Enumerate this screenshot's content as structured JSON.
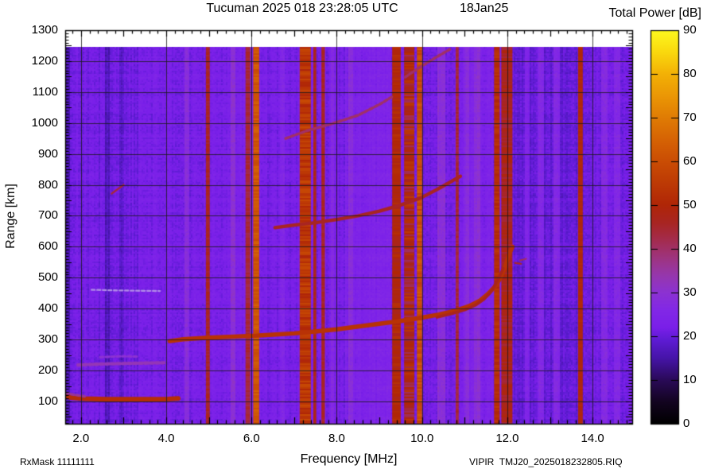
{
  "header": {
    "title": "Tucuman 2025 018 23:28:05 UTC",
    "date": "18Jan25"
  },
  "colorbar": {
    "title": "Total Power [dB]",
    "unit": "dB",
    "min": 0,
    "max": 90,
    "ticks": [
      0,
      10,
      20,
      30,
      40,
      50,
      60,
      70,
      80,
      90
    ]
  },
  "axes": {
    "x": {
      "label": "Frequency [MHz]",
      "ticks": [
        {
          "label": "2.0",
          "value": 2.0
        },
        {
          "label": "4.0",
          "value": 4.0
        },
        {
          "label": "6.0",
          "value": 6.0
        },
        {
          "label": "8.0",
          "value": 8.0
        },
        {
          "label": "10.0",
          "value": 10.0
        },
        {
          "label": "12.0",
          "value": 12.0
        },
        {
          "label": "14.0",
          "value": 14.0
        }
      ]
    },
    "y": {
      "label": "Range [km]",
      "ticks": [
        100,
        200,
        300,
        400,
        500,
        600,
        700,
        800,
        900,
        1000,
        1100,
        1200,
        1300
      ]
    }
  },
  "footer": {
    "left": "RxMask 11111111",
    "right": "VIPIR  TMJ20_2025018232805.RIQ"
  },
  "chart_data": {
    "type": "heatmap",
    "title": "Tucuman 2025 018 23:28:05 UTC",
    "subtitle": "18Jan25",
    "xlabel": "Frequency [MHz]",
    "ylabel": "Range [km]",
    "zlabel": "Total Power [dB]",
    "xlim": [
      1.63,
      14.93
    ],
    "ylim": [
      28,
      1300
    ],
    "zlim": [
      0,
      90
    ],
    "grid": "on",
    "x_grid_step_mhz": 2.0,
    "y_grid_step_km": 100,
    "background_db": 22,
    "data_top_km": 1246,
    "colormap_stops": [
      [
        0,
        "#000000"
      ],
      [
        5,
        "#130420"
      ],
      [
        10,
        "#2a0a58"
      ],
      [
        15,
        "#4614a8"
      ],
      [
        19,
        "#5d1bd2"
      ],
      [
        22,
        "#7a1fe9"
      ],
      [
        26,
        "#8228e6"
      ],
      [
        30,
        "#8c32d2"
      ],
      [
        34,
        "#9637ac"
      ],
      [
        38,
        "#9e347e"
      ],
      [
        42,
        "#a42c4e"
      ],
      [
        46,
        "#a82522"
      ],
      [
        50,
        "#b02607"
      ],
      [
        55,
        "#bd3a05"
      ],
      [
        60,
        "#ca4d04"
      ],
      [
        65,
        "#d66304"
      ],
      [
        70,
        "#e07c04"
      ],
      [
        75,
        "#eb9705"
      ],
      [
        80,
        "#f3b106"
      ],
      [
        85,
        "#fad90e"
      ],
      [
        90,
        "#fdf91f"
      ]
    ],
    "rfi_stripes": [
      [
        4.93,
        5.02,
        46,
        2
      ],
      [
        5.86,
        5.97,
        44,
        2
      ],
      [
        6.04,
        6.18,
        62,
        3
      ],
      [
        7.13,
        7.39,
        54,
        5
      ],
      [
        7.45,
        7.52,
        47,
        2
      ],
      [
        7.64,
        7.72,
        46,
        2
      ],
      [
        9.3,
        9.5,
        50,
        3
      ],
      [
        9.58,
        9.82,
        48,
        7
      ],
      [
        9.88,
        10.0,
        60,
        4
      ],
      [
        10.79,
        10.86,
        44,
        2
      ],
      [
        11.69,
        11.82,
        52,
        3
      ],
      [
        11.86,
        12.12,
        47,
        3
      ],
      [
        13.66,
        13.77,
        50,
        2
      ]
    ],
    "faint_stripes": [
      [
        4.48,
        0.07,
        6
      ],
      [
        5.58,
        0.06,
        6
      ],
      [
        6.72,
        0.05,
        4
      ],
      [
        7.9,
        0.05,
        4
      ],
      [
        8.33,
        0.06,
        5
      ],
      [
        10.45,
        0.08,
        7
      ],
      [
        11.05,
        0.05,
        5
      ],
      [
        11.28,
        0.07,
        6
      ],
      [
        12.48,
        0.06,
        5
      ],
      [
        12.79,
        0.08,
        6
      ],
      [
        13.17,
        0.07,
        6
      ],
      [
        14.28,
        0.09,
        6
      ],
      [
        14.58,
        0.07,
        6
      ],
      [
        2.62,
        0.05,
        -4
      ],
      [
        2.95,
        0.05,
        -3
      ],
      [
        1.7,
        0.06,
        -4
      ]
    ],
    "tint_bands": [
      [
        1.63,
        1.82,
        -1.6
      ],
      [
        2.15,
        3.35,
        -1.0
      ],
      [
        5.35,
        6.02,
        1.0
      ],
      [
        8.18,
        9.28,
        1.8
      ],
      [
        10.88,
        11.66,
        1.2
      ],
      [
        12.12,
        14.02,
        -2.4
      ],
      [
        14.02,
        14.93,
        -0.8
      ]
    ],
    "traces": [
      {
        "name": "e-layer-echo",
        "db": 52,
        "thickness_km": 15,
        "points": [
          [
            1.63,
            116
          ],
          [
            1.8,
            112
          ],
          [
            2.1,
            109
          ],
          [
            2.6,
            107
          ],
          [
            3.2,
            107
          ],
          [
            3.7,
            107
          ],
          [
            4.05,
            108
          ],
          [
            4.28,
            110
          ]
        ]
      },
      {
        "name": "e-layer-wisp",
        "db": 36,
        "thickness_km": 8,
        "mottled": true,
        "points": [
          [
            1.63,
            128
          ],
          [
            1.85,
            121
          ],
          [
            2.1,
            116
          ]
        ]
      },
      {
        "name": "es-second-echo",
        "db": 33,
        "thickness_km": 11,
        "mottled": true,
        "points": [
          [
            1.93,
            218
          ],
          [
            2.5,
            221
          ],
          [
            3.1,
            223
          ],
          [
            3.95,
            225
          ]
        ]
      },
      {
        "name": "es-upper-wisp",
        "db": 30,
        "thickness_km": 8,
        "mottled": true,
        "points": [
          [
            2.45,
            243
          ],
          [
            2.95,
            246
          ],
          [
            3.35,
            245
          ]
        ]
      },
      {
        "name": "faint-460km-echo",
        "color": "#b18ae8",
        "db": 28,
        "thickness_km": 6,
        "mottled": true,
        "points": [
          [
            2.25,
            461
          ],
          [
            2.8,
            459
          ],
          [
            3.3,
            458
          ],
          [
            3.85,
            457
          ]
        ]
      },
      {
        "name": "small-slash-790km",
        "db": 44,
        "thickness_km": 6,
        "points": [
          [
            2.72,
            772
          ],
          [
            3.0,
            800
          ]
        ]
      },
      {
        "name": "f-layer-main",
        "db": 53,
        "thickness_km": 14,
        "points": [
          [
            4.08,
            295
          ],
          [
            4.4,
            301
          ],
          [
            5.0,
            306
          ],
          [
            5.5,
            309
          ],
          [
            6.0,
            312
          ],
          [
            6.5,
            316
          ],
          [
            7.0,
            320
          ],
          [
            7.5,
            326
          ],
          [
            8.0,
            333
          ],
          [
            8.5,
            342
          ],
          [
            9.0,
            351
          ],
          [
            9.5,
            360
          ],
          [
            10.0,
            371
          ],
          [
            10.4,
            381
          ],
          [
            10.8,
            394
          ],
          [
            11.1,
            408
          ],
          [
            11.35,
            425
          ],
          [
            11.55,
            448
          ],
          [
            11.7,
            470
          ],
          [
            11.82,
            495
          ],
          [
            11.92,
            525
          ],
          [
            12.0,
            558
          ],
          [
            12.07,
            585
          ],
          [
            12.12,
            600
          ]
        ]
      },
      {
        "name": "f-layer-xmode",
        "db": 47,
        "thickness_km": 9,
        "points": [
          [
            10.35,
            372
          ],
          [
            10.7,
            384
          ],
          [
            11.0,
            396
          ],
          [
            11.25,
            411
          ],
          [
            11.45,
            430
          ],
          [
            11.6,
            452
          ],
          [
            11.72,
            478
          ],
          [
            11.82,
            505
          ],
          [
            11.9,
            530
          ]
        ]
      },
      {
        "name": "f-second-hop",
        "db": 46,
        "thickness_km": 11,
        "points": [
          [
            6.55,
            662
          ],
          [
            7.0,
            670
          ],
          [
            7.5,
            678
          ],
          [
            8.0,
            688
          ],
          [
            8.5,
            700
          ],
          [
            9.0,
            715
          ],
          [
            9.5,
            735
          ],
          [
            10.0,
            760
          ],
          [
            10.35,
            785
          ],
          [
            10.65,
            808
          ],
          [
            10.9,
            828
          ]
        ]
      },
      {
        "name": "f-third-hop-a",
        "db": 40,
        "thickness_km": 9,
        "mottled": true,
        "points": [
          [
            6.8,
            950
          ],
          [
            7.3,
            975
          ],
          [
            7.9,
            998
          ],
          [
            8.5,
            1025
          ],
          [
            9.0,
            1060
          ],
          [
            9.3,
            1085
          ]
        ]
      },
      {
        "name": "f-third-hop-b",
        "db": 40,
        "thickness_km": 9,
        "mottled": true,
        "points": [
          [
            9.6,
            1148
          ],
          [
            9.95,
            1180
          ],
          [
            10.3,
            1210
          ],
          [
            10.65,
            1238
          ]
        ]
      },
      {
        "name": "specks-12mhz-a",
        "db": 45,
        "thickness_km": 6,
        "points": [
          [
            12.18,
            548
          ],
          [
            12.32,
            545
          ]
        ]
      },
      {
        "name": "specks-12mhz-b",
        "db": 41,
        "thickness_km": 5,
        "points": [
          [
            12.3,
            556
          ],
          [
            12.44,
            561
          ]
        ]
      }
    ]
  }
}
